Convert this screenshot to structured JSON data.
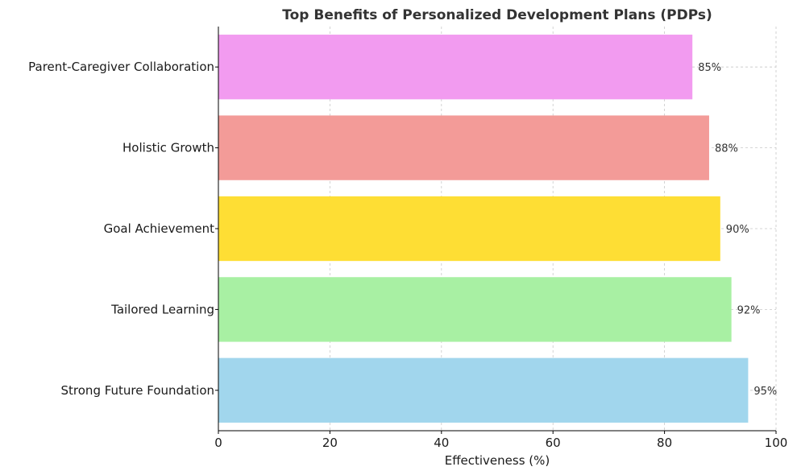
{
  "chart_data": {
    "type": "bar",
    "orientation": "horizontal",
    "title": "Top Benefits of Personalized Development Plans (PDPs)",
    "xlabel": "Effectiveness (%)",
    "ylabel": "",
    "xlim": [
      0,
      100
    ],
    "xticks": [
      0,
      20,
      40,
      60,
      80,
      100
    ],
    "grid": true,
    "categories": [
      "Strong Future Foundation",
      "Tailored Learning",
      "Goal Achievement",
      "Holistic Growth",
      "Parent-Caregiver Collaboration"
    ],
    "values": [
      95,
      92,
      90,
      88,
      85
    ],
    "data_labels": [
      "95%",
      "92%",
      "90%",
      "88%",
      "85%"
    ],
    "colors": [
      "#a1d6ed",
      "#a8f0a3",
      "#fede34",
      "#f39b98",
      "#f29bf0"
    ]
  }
}
